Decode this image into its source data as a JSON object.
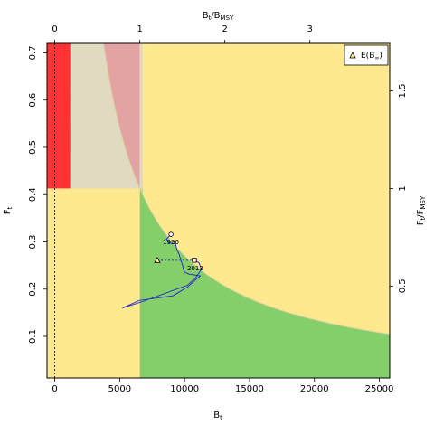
{
  "chart_data": {
    "type": "kobe-phase-plot",
    "title": "",
    "xlabel": "B",
    "xlabel_sub": "t",
    "ylabel": "F",
    "ylabel_sub": "t",
    "top_axis_label": "B",
    "top_axis_sub": "t",
    "top_axis_sub2": "/B",
    "top_axis_sub3": "MSY",
    "right_axis_label": "F",
    "right_axis_sub": "t",
    "right_axis_sub2": "/F",
    "right_axis_sub3": "MSY",
    "xlim": [
      -600,
      25800
    ],
    "ylim": [
      0.012,
      0.72
    ],
    "x_ticks": [
      0,
      5000,
      10000,
      15000,
      20000,
      25000
    ],
    "x_tick_labels": [
      "0",
      "5000",
      "10000",
      "15000",
      "20000",
      "25000"
    ],
    "y_ticks": [
      0.1,
      0.2,
      0.3,
      0.4,
      0.5,
      0.6,
      0.7
    ],
    "y_tick_labels": [
      "0.1",
      "0.2",
      "0.3",
      "0.4",
      "0.5",
      "0.6",
      "0.7"
    ],
    "top_ticks": [
      0,
      1,
      2,
      3
    ],
    "top_tick_labels": [
      "0",
      "1",
      "2",
      "3"
    ],
    "right_ticks": [
      0.5,
      1,
      1.5
    ],
    "right_tick_labels": [
      "0.5",
      "1",
      "1.5"
    ],
    "BMSY": 6550,
    "FMSY": 0.413,
    "B_lim": 1200,
    "B0_dashed": 0,
    "colors": {
      "red": "#ff3333",
      "pink": "#e3a3a3",
      "beige": "#e0dac0",
      "yellow": "#ffe98f",
      "sage": "#bad3b5",
      "green": "#85cf6a",
      "boundary": "#ddd0a0",
      "trajectory": "#2a34c8"
    },
    "trajectory": {
      "points": [
        [
          8950,
          0.316
        ],
        [
          8600,
          0.306
        ],
        [
          8750,
          0.298
        ],
        [
          9300,
          0.296
        ],
        [
          9400,
          0.283
        ],
        [
          9550,
          0.276
        ],
        [
          9700,
          0.262
        ],
        [
          9850,
          0.25
        ],
        [
          9900,
          0.243
        ],
        [
          10000,
          0.236
        ],
        [
          10300,
          0.232
        ],
        [
          11200,
          0.228
        ],
        [
          10200,
          0.204
        ],
        [
          9100,
          0.186
        ],
        [
          6500,
          0.176
        ],
        [
          5200,
          0.16
        ],
        [
          6800,
          0.174
        ],
        [
          10200,
          0.208
        ],
        [
          10800,
          0.222
        ],
        [
          11300,
          0.242
        ],
        [
          11100,
          0.256
        ],
        [
          10750,
          0.261
        ]
      ],
      "start_label": "1990",
      "start": [
        8950,
        0.316
      ],
      "end_label": "2013",
      "end": [
        10750,
        0.261
      ],
      "projection_start": [
        7900,
        0.261
      ]
    },
    "equilibrium": {
      "B": 7900,
      "F": 0.261,
      "label": "E(B",
      "label_sub": "∞",
      "label_close": ")"
    },
    "grid": false,
    "legend": "top-right"
  }
}
